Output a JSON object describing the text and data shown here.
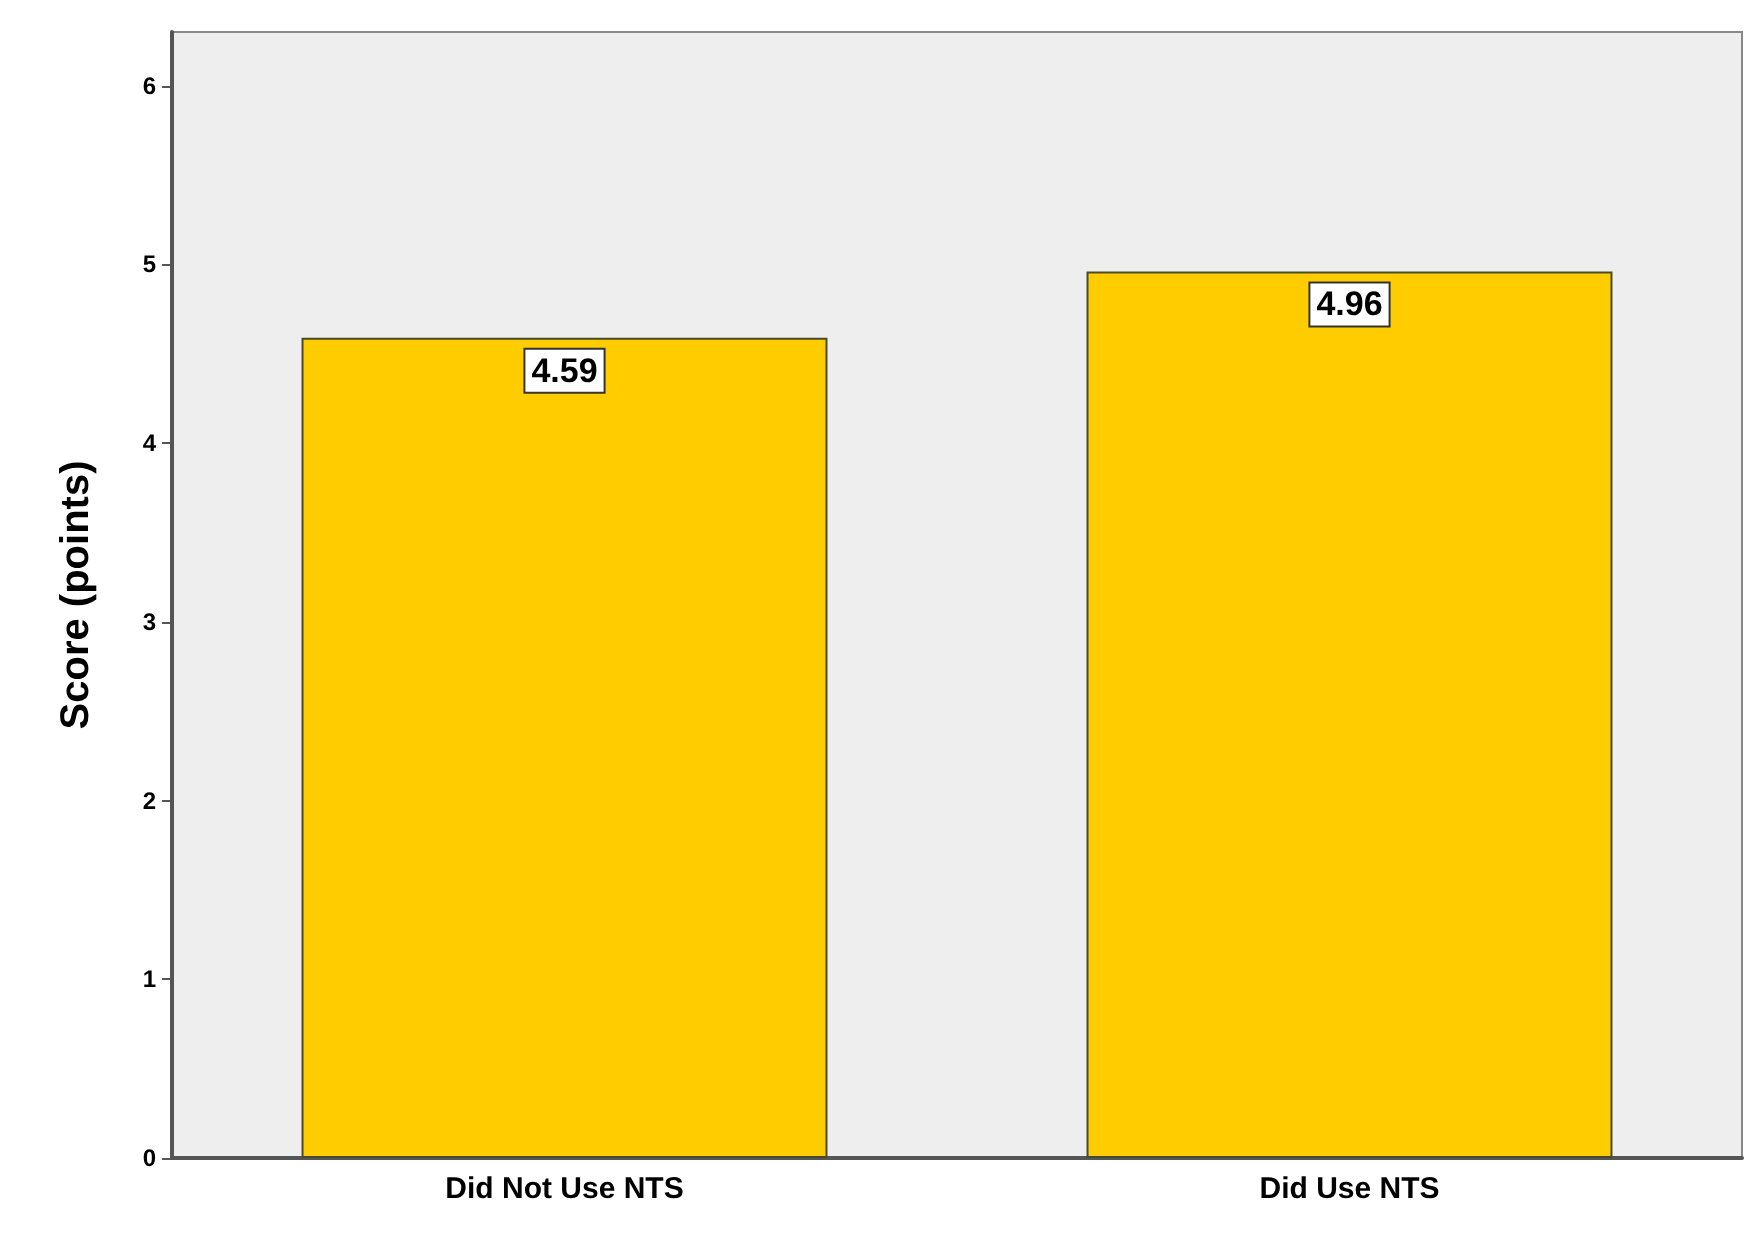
{
  "chart_data": {
    "type": "bar",
    "ylabel": "Score (points)",
    "categories": [
      "Did Not Use NTS",
      "Did Use NTS"
    ],
    "values": [
      4.59,
      4.96
    ],
    "color": "#ffcc00",
    "ylim": [
      0,
      6.3
    ],
    "yticks": [
      0,
      1,
      2,
      3,
      4,
      5,
      6
    ],
    "grid": false,
    "data_labels": true
  }
}
